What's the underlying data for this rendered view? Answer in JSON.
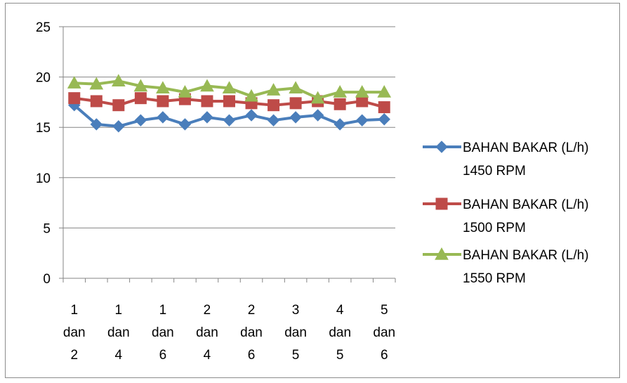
{
  "chart_data": {
    "type": "line",
    "title": "",
    "xlabel": "",
    "ylabel": "",
    "ylim": [
      0,
      25
    ],
    "yticks": [
      0,
      5,
      10,
      15,
      20,
      25
    ],
    "grid": true,
    "legend_position": "right",
    "categories": [
      "1|dan|2",
      "",
      "1|dan|4",
      "",
      "1|dan|6",
      "",
      "2|dan|4",
      "",
      "2|dan|6",
      "",
      "3|dan|5",
      "",
      "4|dan|5",
      "",
      "5|dan|6"
    ],
    "series": [
      {
        "name_line1": "BAHAN BAKAR (L/h)",
        "name_line2": "1450 RPM",
        "color": "#4a7ebb",
        "marker": "diamond",
        "values": [
          17.2,
          15.3,
          15.1,
          15.7,
          16.0,
          15.3,
          16.0,
          15.7,
          16.2,
          15.7,
          16.0,
          16.2,
          15.3,
          15.7,
          15.8
        ]
      },
      {
        "name_line1": "BAHAN BAKAR (L/h)",
        "name_line2": "1500 RPM",
        "color": "#be4b48",
        "marker": "square",
        "values": [
          17.9,
          17.6,
          17.2,
          17.9,
          17.6,
          17.8,
          17.6,
          17.6,
          17.4,
          17.2,
          17.4,
          17.6,
          17.3,
          17.6,
          17.0
        ]
      },
      {
        "name_line1": "BAHAN BAKAR (L/h)",
        "name_line2": "1550 RPM",
        "color": "#98b954",
        "marker": "triangle",
        "values": [
          19.4,
          19.3,
          19.6,
          19.1,
          18.9,
          18.5,
          19.1,
          18.9,
          18.1,
          18.7,
          18.9,
          17.9,
          18.5,
          18.5,
          18.5
        ]
      }
    ]
  }
}
